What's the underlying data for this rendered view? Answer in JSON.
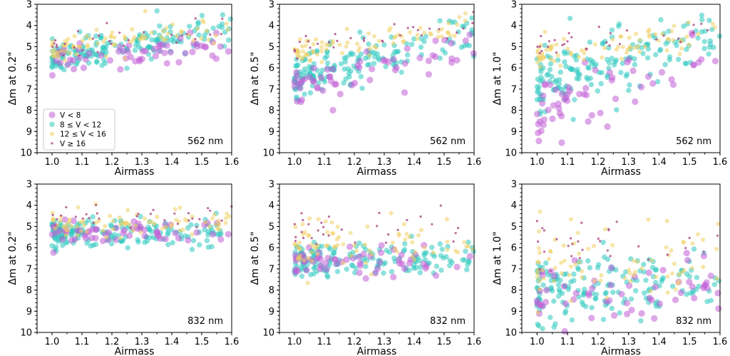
{
  "chart_data": [
    {
      "type": "scatter",
      "panel": "top-left",
      "xlabel": "Airmass",
      "ylabel": "Δm at 0.2\"",
      "wavelength_label": "562 nm",
      "xlim": [
        0.95,
        1.6
      ],
      "ylim": [
        10,
        3
      ],
      "y_inverted": true,
      "xticks": [
        "1.0",
        "1.1",
        "1.2",
        "1.3",
        "1.4",
        "1.5",
        "1.6"
      ],
      "yticks": [
        "3",
        "4",
        "5",
        "6",
        "7",
        "8",
        "9",
        "10"
      ],
      "trend": {
        "V < 8": {
          "y_at_1.0": 5.8,
          "y_at_1.6": 4.9,
          "spread": 0.4
        },
        "8 ≤ V < 12": {
          "y_at_1.0": 5.6,
          "y_at_1.6": 4.1,
          "spread": 0.35
        },
        "12 ≤ V < 16": {
          "y_at_1.0": 5.2,
          "y_at_1.6": 4.0,
          "spread": 0.3
        },
        "V ≥ 16": {
          "y_at_1.0": 5.0,
          "y_at_1.6": 4.0,
          "spread": 0.3
        }
      }
    },
    {
      "type": "scatter",
      "panel": "top-middle",
      "xlabel": "Airmass",
      "ylabel": "Δm at 0.5\"",
      "wavelength_label": "562 nm",
      "xlim": [
        0.95,
        1.6
      ],
      "ylim": [
        10,
        3
      ],
      "y_inverted": true,
      "xticks": [
        "1.0",
        "1.1",
        "1.2",
        "1.3",
        "1.4",
        "1.5",
        "1.6"
      ],
      "yticks": [
        "3",
        "4",
        "5",
        "6",
        "7",
        "8",
        "9",
        "10"
      ],
      "trend": {
        "V < 8": {
          "y_at_1.0": 7.0,
          "y_at_1.6": 5.2,
          "spread": 0.5
        },
        "8 ≤ V < 12": {
          "y_at_1.0": 6.5,
          "y_at_1.6": 4.3,
          "spread": 0.55
        },
        "12 ≤ V < 16": {
          "y_at_1.0": 5.3,
          "y_at_1.6": 4.0,
          "spread": 0.3
        },
        "V ≥ 16": {
          "y_at_1.0": 5.0,
          "y_at_1.6": 4.0,
          "spread": 0.3
        }
      }
    },
    {
      "type": "scatter",
      "panel": "top-right",
      "xlabel": "Airmass",
      "ylabel": "Δm at 1.0\"",
      "wavelength_label": "562 nm",
      "xlim": [
        0.95,
        1.6
      ],
      "ylim": [
        10,
        3
      ],
      "y_inverted": true,
      "xticks": [
        "1.0",
        "1.1",
        "1.2",
        "1.3",
        "1.4",
        "1.5",
        "1.6"
      ],
      "yticks": [
        "3",
        "4",
        "5",
        "6",
        "7",
        "8",
        "9",
        "10"
      ],
      "trend": {
        "V < 8": {
          "y_at_1.0": 8.0,
          "y_at_1.6": 5.5,
          "spread": 0.6
        },
        "8 ≤ V < 12": {
          "y_at_1.0": 6.8,
          "y_at_1.6": 4.4,
          "spread": 0.7
        },
        "12 ≤ V < 16": {
          "y_at_1.0": 5.4,
          "y_at_1.6": 4.2,
          "spread": 0.35
        },
        "V ≥ 16": {
          "y_at_1.0": 5.0,
          "y_at_1.6": 4.1,
          "spread": 0.3
        }
      }
    },
    {
      "type": "scatter",
      "panel": "bottom-left",
      "xlabel": "Airmass",
      "ylabel": "Δm at 0.2\"",
      "wavelength_label": "832 nm",
      "xlim": [
        0.95,
        1.6
      ],
      "ylim": [
        10,
        3
      ],
      "y_inverted": true,
      "xticks": [
        "1.0",
        "1.1",
        "1.2",
        "1.3",
        "1.4",
        "1.5",
        "1.6"
      ],
      "yticks": [
        "3",
        "4",
        "5",
        "6",
        "7",
        "8",
        "9",
        "10"
      ],
      "trend": {
        "V < 8": {
          "y_at_1.0": 5.2,
          "y_at_1.6": 5.3,
          "spread": 0.3
        },
        "8 ≤ V < 12": {
          "y_at_1.0": 5.3,
          "y_at_1.6": 5.3,
          "spread": 0.35
        },
        "12 ≤ V < 16": {
          "y_at_1.0": 4.9,
          "y_at_1.6": 4.8,
          "spread": 0.3
        },
        "V ≥ 16": {
          "y_at_1.0": 4.7,
          "y_at_1.6": 4.6,
          "spread": 0.3
        }
      }
    },
    {
      "type": "scatter",
      "panel": "bottom-middle",
      "xlabel": "Airmass",
      "ylabel": "Δm at 0.5\"",
      "wavelength_label": "832 nm",
      "xlim": [
        0.95,
        1.6
      ],
      "ylim": [
        10,
        3
      ],
      "y_inverted": true,
      "xticks": [
        "1.0",
        "1.1",
        "1.2",
        "1.3",
        "1.4",
        "1.5",
        "1.6"
      ],
      "yticks": [
        "3",
        "4",
        "5",
        "6",
        "7",
        "8",
        "9",
        "10"
      ],
      "trend": {
        "V < 8": {
          "y_at_1.0": 6.7,
          "y_at_1.6": 6.6,
          "spread": 0.35
        },
        "8 ≤ V < 12": {
          "y_at_1.0": 6.6,
          "y_at_1.6": 6.5,
          "spread": 0.4
        },
        "12 ≤ V < 16": {
          "y_at_1.0": 5.9,
          "y_at_1.6": 5.9,
          "spread": 0.55
        },
        "V ≥ 16": {
          "y_at_1.0": 5.3,
          "y_at_1.6": 5.3,
          "spread": 0.4
        }
      }
    },
    {
      "type": "scatter",
      "panel": "bottom-right",
      "xlabel": "Airmass",
      "ylabel": "Δm at 1.0\"",
      "wavelength_label": "832 nm",
      "xlim": [
        0.95,
        1.6
      ],
      "ylim": [
        10,
        3
      ],
      "y_inverted": true,
      "xticks": [
        "1.0",
        "1.1",
        "1.2",
        "1.3",
        "1.4",
        "1.5",
        "1.6"
      ],
      "yticks": [
        "3",
        "4",
        "5",
        "6",
        "7",
        "8",
        "9",
        "10"
      ],
      "trend": {
        "V < 8": {
          "y_at_1.0": 8.3,
          "y_at_1.6": 8.0,
          "spread": 0.7
        },
        "8 ≤ V < 12": {
          "y_at_1.0": 7.9,
          "y_at_1.6": 7.5,
          "spread": 0.75
        },
        "12 ≤ V < 16": {
          "y_at_1.0": 6.9,
          "y_at_1.6": 6.6,
          "spread": 0.9
        },
        "V ≥ 16": {
          "y_at_1.0": 6.0,
          "y_at_1.6": 6.0,
          "spread": 0.8
        }
      }
    }
  ],
  "legend": {
    "location": "lower-left of top-left panel",
    "entries": [
      {
        "label": "V < 8",
        "color": "#c15fd6",
        "marker": "large-circle"
      },
      {
        "label": "8 ≤ V < 12",
        "color": "#2dc8c0",
        "marker": "medium-circle"
      },
      {
        "label": "12 ≤ V < 16",
        "color": "#f0d060",
        "marker": "small-circle"
      },
      {
        "label": "V ≥ 16",
        "color": "#b0508a",
        "marker": "dot"
      }
    ]
  }
}
